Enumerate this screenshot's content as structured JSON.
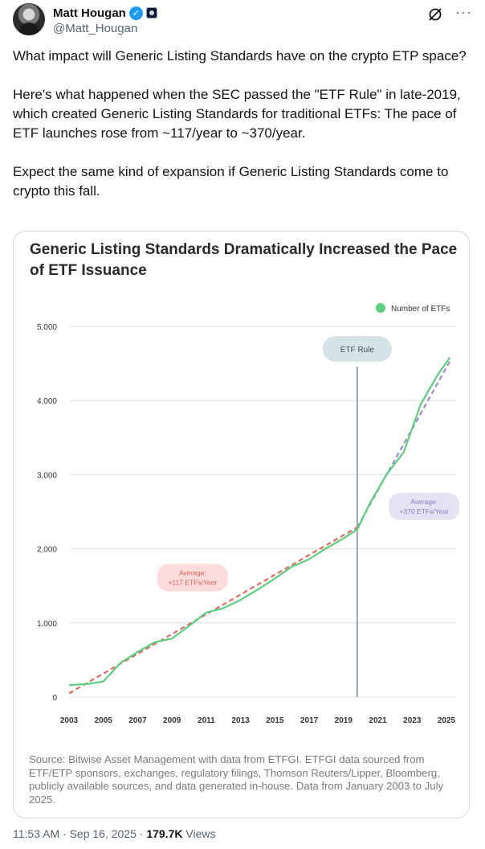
{
  "user": {
    "display_name": "Matt Hougan",
    "handle": "@Matt_Hougan"
  },
  "tweet": {
    "paragraphs": [
      "What impact will Generic Listing Standards have on the crypto ETP space?",
      "Here's what happened when the SEC passed the \"ETF Rule\" in late-2019, which created Generic Listing Standards for traditional ETFs: The pace of ETF launches rose from ~117/year to ~370/year.",
      "Expect the same kind of expansion if Generic Listing Standards come to crypto this fall."
    ]
  },
  "chart_data": {
    "type": "line",
    "title": "Generic Listing Standards Dramatically Increased the Pace of ETF Issuance",
    "legend": "Number of ETFs",
    "legend_position": "top-right",
    "xlim": [
      2003,
      2025
    ],
    "ylim": [
      0,
      5000
    ],
    "x_ticks": [
      "2003",
      "2005",
      "2007",
      "2009",
      "2011",
      "2013",
      "2015",
      "2017",
      "2019",
      "2021",
      "2023",
      "2025"
    ],
    "y_ticks": [
      "0",
      "1,000",
      "2,000",
      "3,000",
      "4,000",
      "5,000"
    ],
    "grid": true,
    "series": [
      {
        "name": "Number of ETFs",
        "color": "#5ccf7e",
        "x": [
          2003,
          2004,
          2005,
          2006,
          2007,
          2008,
          2009,
          2010,
          2011,
          2012,
          2013,
          2014,
          2015,
          2016,
          2017,
          2018,
          2019,
          2019.8,
          2020.5,
          2021.5,
          2022.5,
          2023.5,
          2024.5,
          2025.2
        ],
        "y": [
          160,
          175,
          210,
          460,
          610,
          740,
          790,
          960,
          1140,
          1200,
          1310,
          1450,
          1600,
          1760,
          1860,
          2010,
          2140,
          2260,
          2600,
          3000,
          3300,
          3950,
          4350,
          4580
        ]
      }
    ],
    "trendlines": [
      {
        "color": "#e06a66",
        "x": [
          2003,
          2019.8
        ],
        "y": [
          50,
          2290
        ]
      },
      {
        "color": "#9a8bc9",
        "x": [
          2019.8,
          2025.2
        ],
        "y": [
          2290,
          4530
        ]
      }
    ],
    "event_line": {
      "x": 2019.8,
      "label": "ETF Rule",
      "color": "#5b7480",
      "label_bg": "#d6e3e6"
    },
    "annotations": [
      {
        "text_lines": [
          "Average:",
          "+117 ETFs/Year"
        ],
        "x": 2010.2,
        "y": 1610,
        "color": "#d9605a",
        "bg": "#fbdcda"
      },
      {
        "text_lines": [
          "Average:",
          "+370 ETFs/Year"
        ],
        "x": 2023.7,
        "y": 2570,
        "color": "#8a7cc0",
        "bg": "#e6e2f3"
      }
    ],
    "source": "Source: Bitwise Asset Management with data from ETFGI. ETFGI data sourced from ETF/ETP sponsors, exchanges, regulatory filings, Thomson Reuters/Lipper, Bloomberg, publicly available sources, and data generated in-house. Data from January 2003 to July 2025."
  },
  "meta": {
    "time": "11:53 AM",
    "date": "Sep 16, 2025",
    "separator": "·",
    "views_count": "179.7K",
    "views_label": "Views"
  }
}
